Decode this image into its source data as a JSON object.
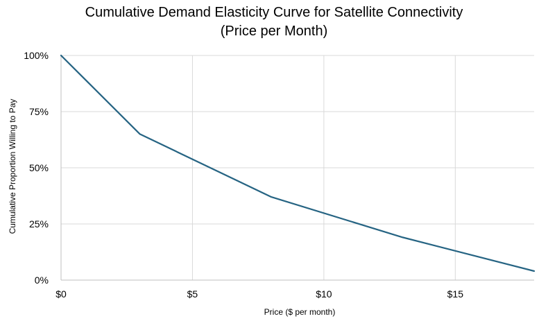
{
  "chart_data": {
    "type": "line",
    "title": [
      "Cumulative Demand Elasticity Curve for Satellite Connectivity",
      "(Price per Month)"
    ],
    "xlabel": "Price ($ per month)",
    "ylabel": "Cumulative Proportion Willing to Pay",
    "xlim": [
      0,
      18
    ],
    "ylim": [
      0,
      100
    ],
    "x_ticks": [
      0,
      5,
      10,
      15
    ],
    "x_tick_labels": [
      "$0",
      "$5",
      "$10",
      "$15"
    ],
    "y_ticks": [
      0,
      25,
      50,
      75,
      100
    ],
    "y_tick_labels": [
      "0%",
      "25%",
      "50%",
      "75%",
      "100%"
    ],
    "grid": true,
    "line_color": "#266483",
    "series": [
      {
        "x": [
          0,
          3,
          8,
          13,
          18
        ],
        "y": [
          100,
          65,
          37,
          19,
          4
        ]
      }
    ]
  }
}
